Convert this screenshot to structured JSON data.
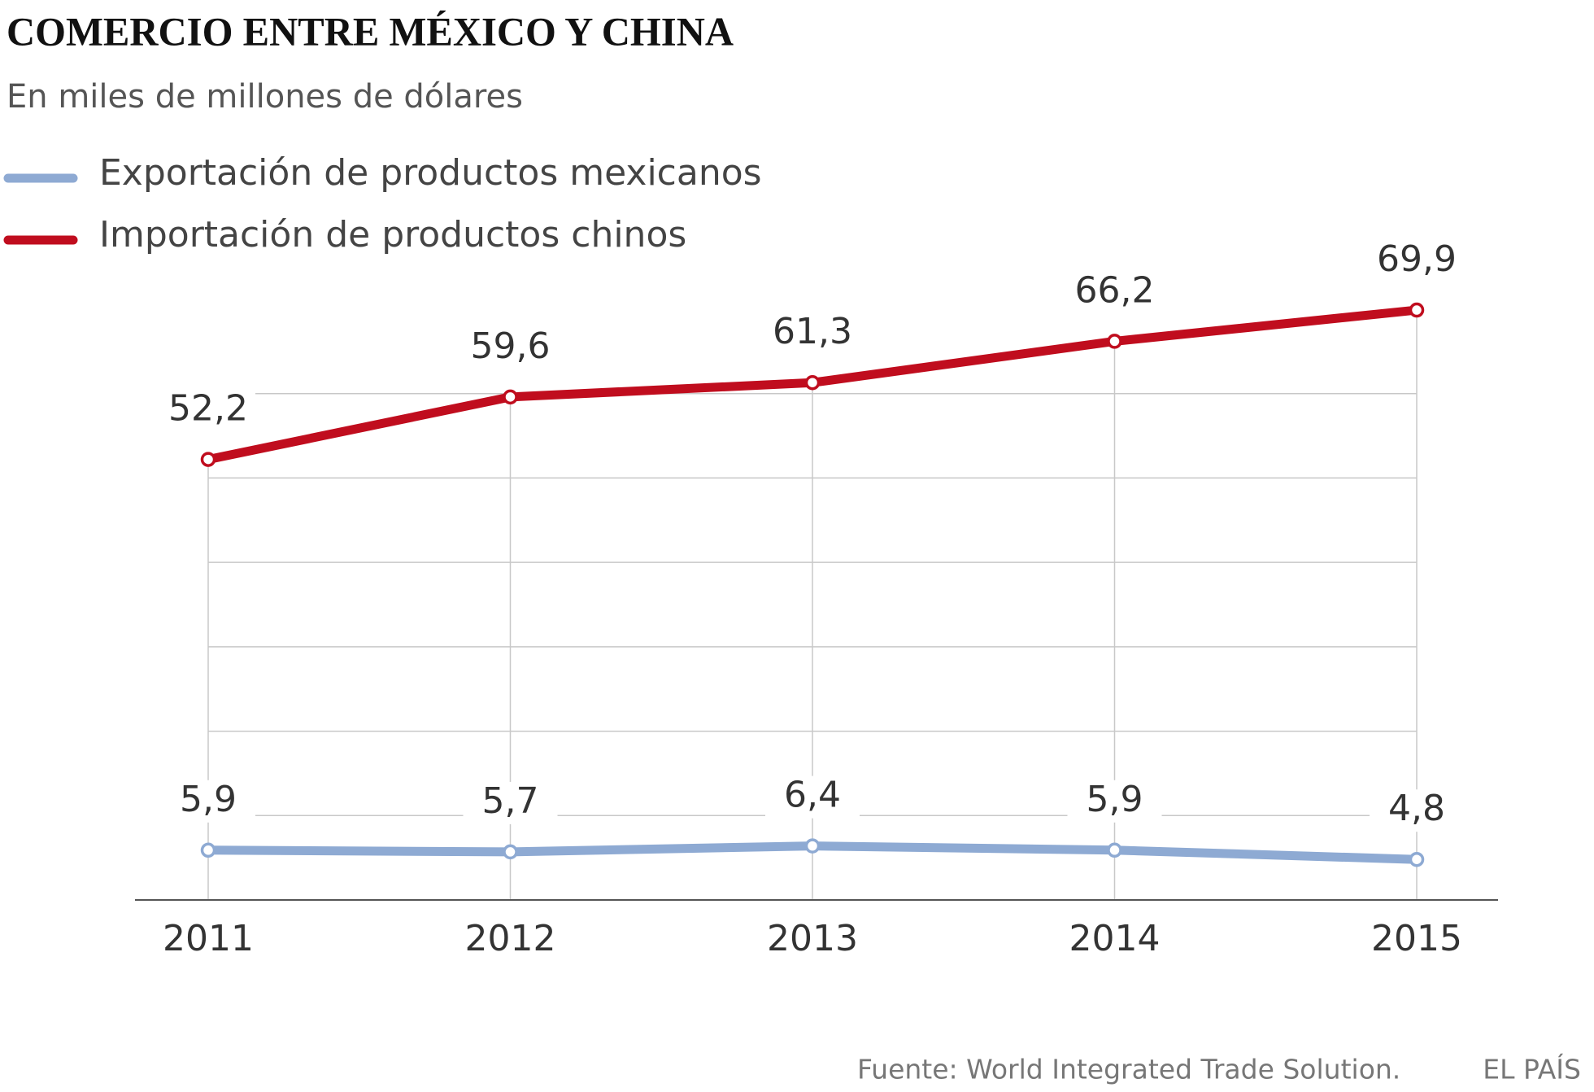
{
  "chart_data": {
    "type": "line",
    "title": "COMERCIO ENTRE MÉXICO Y CHINA",
    "subtitle": "En miles de millones de dólares",
    "categories": [
      "2011",
      "2012",
      "2013",
      "2014",
      "2015"
    ],
    "series": [
      {
        "name": "Exportación de productos mexicanos",
        "color": "#8eaad3",
        "values": [
          5.9,
          5.7,
          6.4,
          5.9,
          4.8
        ],
        "value_labels": [
          "5,9",
          "5,7",
          "6,4",
          "5,9",
          "4,8"
        ]
      },
      {
        "name": "Importación de productos chinos",
        "color": "#c00d1e",
        "values": [
          52.2,
          59.6,
          61.3,
          66.2,
          69.9
        ],
        "value_labels": [
          "52,2",
          "59,6",
          "61,3",
          "66,2",
          "69,9"
        ]
      }
    ],
    "ylim": [
      0,
      70
    ],
    "yticks": [
      0,
      10,
      20,
      30,
      40,
      50,
      60
    ],
    "grid": true,
    "source": "Fuente: World Integrated Trade Solution.",
    "credit": "EL PAÍS"
  }
}
